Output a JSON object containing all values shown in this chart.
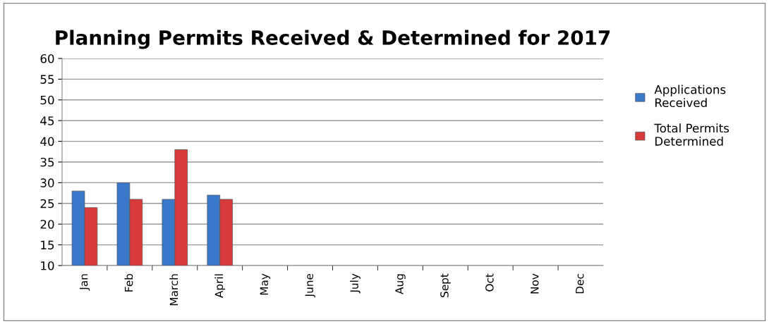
{
  "chart_data": {
    "type": "bar",
    "title": "Planning Permits Received & Determined for 2017",
    "categories": [
      "Jan",
      "Feb",
      "March",
      "April",
      "May",
      "June",
      "July",
      "Aug",
      "Sept",
      "Oct",
      "Nov",
      "Dec"
    ],
    "series": [
      {
        "name": "Applications Received",
        "color": "#3a78c9",
        "values": [
          28,
          30,
          26,
          27,
          null,
          null,
          null,
          null,
          null,
          null,
          null,
          null
        ]
      },
      {
        "name": "Total Permits Determined",
        "color": "#d63a3a",
        "values": [
          24,
          26,
          38,
          26,
          null,
          null,
          null,
          null,
          null,
          null,
          null,
          null
        ]
      }
    ],
    "ylim": [
      10,
      60
    ],
    "yticks": [
      10,
      15,
      20,
      25,
      30,
      35,
      40,
      45,
      50,
      55,
      60
    ],
    "grid": "y",
    "legend": "right"
  }
}
